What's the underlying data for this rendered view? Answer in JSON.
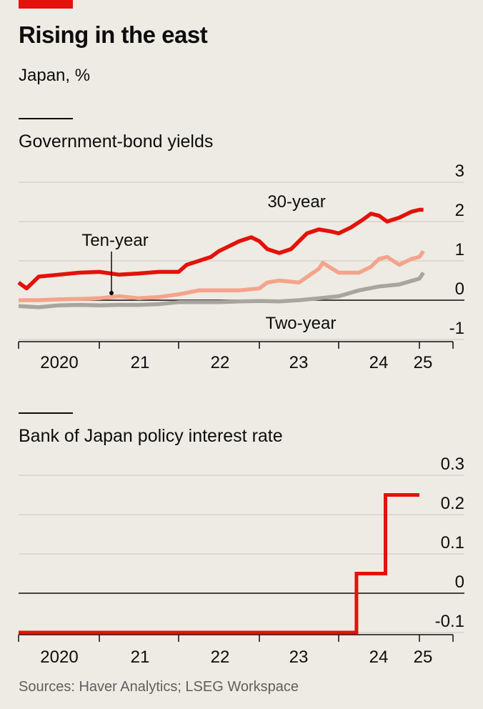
{
  "header": {
    "title": "Rising in the east",
    "subtitle": "Japan, %"
  },
  "source": "Sources: Haver Analytics; LSEG Workspace",
  "colors": {
    "thirty_year": "#e3120b",
    "ten_year": "#f6a38c",
    "two_year": "#a6a69e",
    "policy_rate": "#e3120b",
    "gridline": "#c9c7bf",
    "background": "#edebe3"
  },
  "chart_data": [
    {
      "type": "line",
      "title": "Government-bond yields",
      "x_ticks": [
        "2020",
        "21",
        "22",
        "23",
        "24",
        "25"
      ],
      "y_ticks": [
        "3",
        "2",
        "1",
        "0",
        "-1"
      ],
      "ylim": [
        -1,
        3
      ],
      "xlim": [
        2020.0,
        2025.25
      ],
      "grid": true,
      "series": [
        {
          "name": "30-year",
          "x": [
            2020.0,
            2020.1,
            2020.25,
            2020.5,
            2020.75,
            2021.0,
            2021.25,
            2021.5,
            2021.75,
            2022.0,
            2022.1,
            2022.25,
            2022.4,
            2022.5,
            2022.6,
            2022.75,
            2022.9,
            2023.0,
            2023.1,
            2023.25,
            2023.4,
            2023.5,
            2023.6,
            2023.75,
            2023.9,
            2024.0,
            2024.15,
            2024.3,
            2024.4,
            2024.5,
            2024.6,
            2024.75,
            2024.9,
            2025.0,
            2025.05
          ],
          "values": [
            0.45,
            0.3,
            0.6,
            0.65,
            0.7,
            0.72,
            0.65,
            0.68,
            0.72,
            0.72,
            0.9,
            1.0,
            1.1,
            1.25,
            1.35,
            1.5,
            1.6,
            1.5,
            1.3,
            1.2,
            1.3,
            1.5,
            1.7,
            1.8,
            1.75,
            1.7,
            1.85,
            2.05,
            2.2,
            2.15,
            2.0,
            2.1,
            2.25,
            2.3,
            2.3
          ]
        },
        {
          "name": "Ten-year",
          "x": [
            2020.0,
            2020.25,
            2020.5,
            2020.75,
            2021.0,
            2021.25,
            2021.5,
            2021.75,
            2022.0,
            2022.25,
            2022.5,
            2022.75,
            2023.0,
            2023.1,
            2023.25,
            2023.5,
            2023.75,
            2023.8,
            2024.0,
            2024.25,
            2024.4,
            2024.5,
            2024.6,
            2024.75,
            2024.9,
            2025.0,
            2025.05
          ],
          "values": [
            0.0,
            0.0,
            0.02,
            0.03,
            0.05,
            0.1,
            0.05,
            0.08,
            0.15,
            0.25,
            0.25,
            0.25,
            0.3,
            0.45,
            0.5,
            0.45,
            0.8,
            0.95,
            0.7,
            0.7,
            0.85,
            1.05,
            1.1,
            0.9,
            1.05,
            1.1,
            1.25
          ]
        },
        {
          "name": "Two-year",
          "x": [
            2020.0,
            2020.25,
            2020.5,
            2020.75,
            2021.0,
            2021.25,
            2021.5,
            2021.75,
            2022.0,
            2022.25,
            2022.5,
            2022.75,
            2023.0,
            2023.25,
            2023.5,
            2023.75,
            2024.0,
            2024.25,
            2024.5,
            2024.75,
            2025.0,
            2025.05
          ],
          "values": [
            -0.15,
            -0.18,
            -0.13,
            -0.12,
            -0.13,
            -0.12,
            -0.12,
            -0.1,
            -0.05,
            -0.05,
            -0.05,
            -0.03,
            -0.02,
            -0.03,
            0.0,
            0.05,
            0.1,
            0.25,
            0.35,
            0.4,
            0.55,
            0.7
          ]
        }
      ],
      "annotations": [
        "30-year",
        "Ten-year",
        "Two-year"
      ]
    },
    {
      "type": "line",
      "step": true,
      "title": "Bank of Japan policy interest rate",
      "x_ticks": [
        "2020",
        "21",
        "22",
        "23",
        "24",
        "25"
      ],
      "y_ticks": [
        "0.3",
        "0.2",
        "0.1",
        "0",
        "-0.1"
      ],
      "ylim": [
        -0.1,
        0.3
      ],
      "xlim": [
        2020.0,
        2025.25
      ],
      "grid": true,
      "series": [
        {
          "x": [
            2020.0,
            2024.22,
            2024.22,
            2024.58,
            2024.58,
            2025.0
          ],
          "values": [
            -0.1,
            -0.1,
            0.05,
            0.05,
            0.25,
            0.25
          ]
        }
      ]
    }
  ]
}
